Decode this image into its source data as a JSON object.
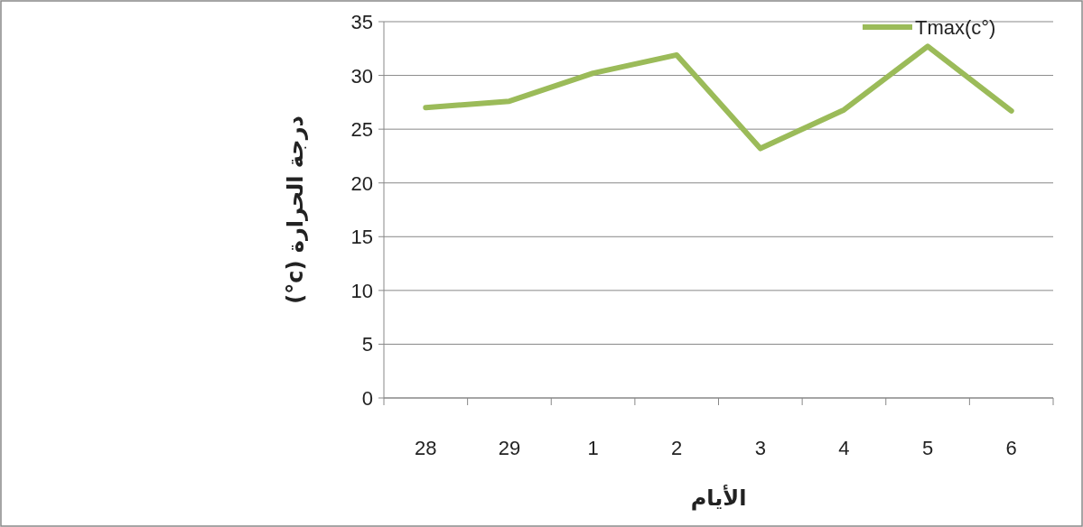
{
  "chart_data": {
    "type": "line",
    "xlabel": "الأيام",
    "ylabel": "درجة الحرارة  (c°)",
    "categories": [
      "28",
      "29",
      "1",
      "2",
      "3",
      "4",
      "5",
      "6"
    ],
    "series": [
      {
        "name": "Tmax(c°)",
        "color": "#9bbb59",
        "values": [
          27,
          27.6,
          30.2,
          31.9,
          23.2,
          26.8,
          32.7,
          26.7
        ]
      }
    ],
    "ylim": [
      0,
      35
    ],
    "yticks": [
      0,
      5,
      10,
      15,
      20,
      25,
      30,
      35
    ],
    "grid": "y",
    "legend": "top right",
    "marker": "none",
    "line_style": "solid"
  }
}
